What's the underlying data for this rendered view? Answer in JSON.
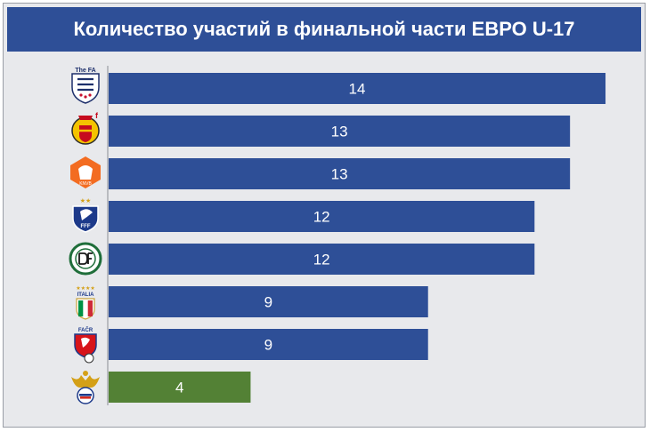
{
  "title": "Количество участий в финальной части ЕВРО U-17",
  "colors": {
    "background": "#e8e9ec",
    "title_bar": "#2e4f97",
    "bar_default": "#2e4f97",
    "bar_highlight": "#538135"
  },
  "chart_data": {
    "type": "bar",
    "orientation": "horizontal",
    "title": "Количество участий в финальной части ЕВРО U-17",
    "categories": [
      "england-fa-crest",
      "spain-rfef-crest",
      "netherlands-knvb-crest",
      "france-fff-crest",
      "germany-dfb-crest",
      "italy-figc-crest",
      "czech-facr-crest",
      "russia-rfs-crest"
    ],
    "values": [
      14,
      13,
      13,
      12,
      12,
      9,
      9,
      4
    ],
    "bar_colors": [
      "#2e4f97",
      "#2e4f97",
      "#2e4f97",
      "#2e4f97",
      "#2e4f97",
      "#2e4f97",
      "#2e4f97",
      "#538135"
    ],
    "xlim": [
      0,
      14.2
    ],
    "xlabel": "",
    "ylabel": "",
    "grid": false,
    "legend": "none",
    "data_labels": true
  },
  "logos": {
    "england": "The FA",
    "france": "FFF",
    "italy": "ITALIA",
    "czech": "FAČR"
  }
}
